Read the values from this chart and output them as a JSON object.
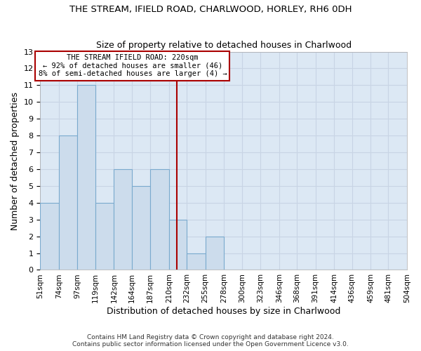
{
  "title": "THE STREAM, IFIELD ROAD, CHARLWOOD, HORLEY, RH6 0DH",
  "subtitle": "Size of property relative to detached houses in Charlwood",
  "xlabel": "Distribution of detached houses by size in Charlwood",
  "ylabel": "Number of detached properties",
  "bin_edges": [
    51,
    74,
    97,
    119,
    142,
    164,
    187,
    210,
    232,
    255,
    278,
    300,
    323,
    346,
    368,
    391,
    414,
    436,
    459,
    481,
    504
  ],
  "bin_labels": [
    "51sqm",
    "74sqm",
    "97sqm",
    "119sqm",
    "142sqm",
    "164sqm",
    "187sqm",
    "210sqm",
    "232sqm",
    "255sqm",
    "278sqm",
    "300sqm",
    "323sqm",
    "346sqm",
    "368sqm",
    "391sqm",
    "414sqm",
    "436sqm",
    "459sqm",
    "481sqm",
    "504sqm"
  ],
  "counts": [
    4,
    8,
    11,
    4,
    6,
    5,
    6,
    3,
    1,
    2,
    0,
    0,
    0,
    0,
    0,
    0,
    0,
    0,
    0,
    0
  ],
  "bar_color": "#ccdcec",
  "bar_edgecolor": "#7aaace",
  "vline_x": 220,
  "vline_color": "#aa0000",
  "ylim": [
    0,
    13
  ],
  "yticks": [
    0,
    1,
    2,
    3,
    4,
    5,
    6,
    7,
    8,
    9,
    10,
    11,
    12,
    13
  ],
  "annotation_title": "THE STREAM IFIELD ROAD: 220sqm",
  "annotation_line1": "← 92% of detached houses are smaller (46)",
  "annotation_line2": "8% of semi-detached houses are larger (4) →",
  "annotation_box_facecolor": "#ffffff",
  "annotation_box_edgecolor": "#aa0000",
  "grid_color": "#c8d4e4",
  "plot_bg_color": "#dce8f4",
  "fig_bg_color": "#ffffff",
  "footer1": "Contains HM Land Registry data © Crown copyright and database right 2024.",
  "footer2": "Contains public sector information licensed under the Open Government Licence v3.0."
}
